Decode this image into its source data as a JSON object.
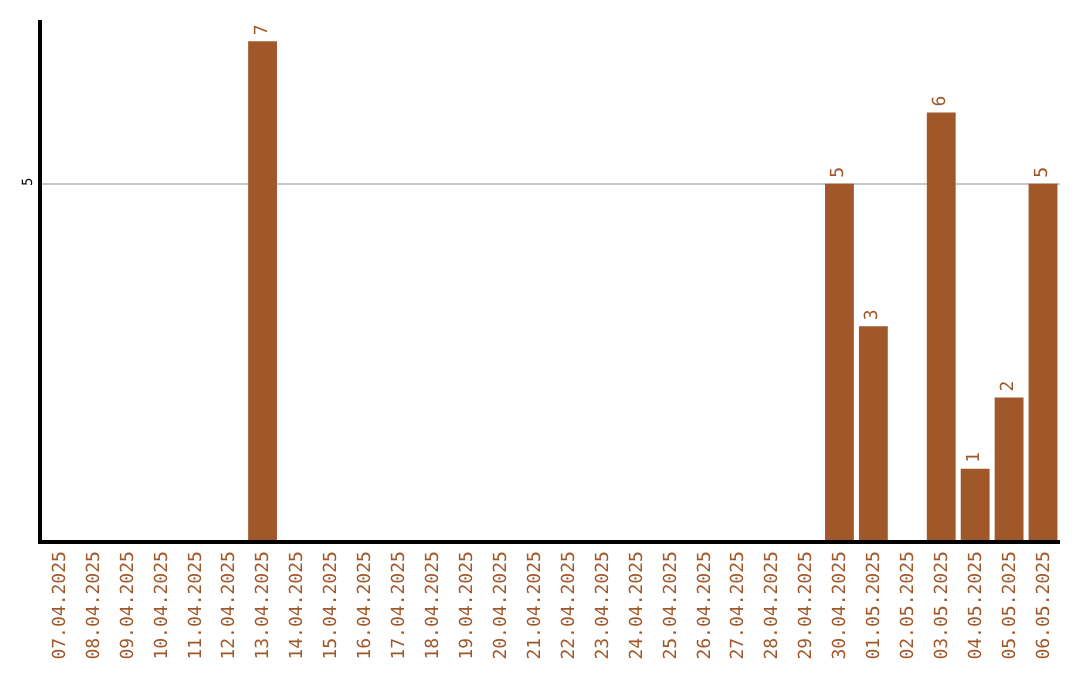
{
  "chart_data": {
    "type": "bar",
    "categories": [
      "07.04.2025",
      "08.04.2025",
      "09.04.2025",
      "10.04.2025",
      "11.04.2025",
      "12.04.2025",
      "13.04.2025",
      "14.04.2025",
      "15.04.2025",
      "16.04.2025",
      "17.04.2025",
      "18.04.2025",
      "19.04.2025",
      "20.04.2025",
      "21.04.2025",
      "22.04.2025",
      "23.04.2025",
      "24.04.2025",
      "25.04.2025",
      "26.04.2025",
      "27.04.2025",
      "28.04.2025",
      "29.04.2025",
      "30.04.2025",
      "01.05.2025",
      "02.05.2025",
      "03.05.2025",
      "04.05.2025",
      "05.05.2025",
      "06.05.2025"
    ],
    "values": [
      0,
      0,
      0,
      0,
      0,
      0,
      7,
      0,
      0,
      0,
      0,
      0,
      0,
      0,
      0,
      0,
      0,
      0,
      0,
      0,
      0,
      0,
      0,
      5,
      3,
      0,
      6,
      1,
      2,
      5
    ],
    "color": "#a0582a",
    "value_labels": [
      null,
      null,
      null,
      null,
      null,
      null,
      "7",
      null,
      null,
      null,
      null,
      null,
      null,
      null,
      null,
      null,
      null,
      null,
      null,
      null,
      null,
      null,
      null,
      "5",
      "3",
      null,
      "6",
      "1",
      "2",
      "5"
    ],
    "ylim": [
      0,
      7.3
    ],
    "yticks": [
      5
    ],
    "grid": "y",
    "legend": false
  }
}
